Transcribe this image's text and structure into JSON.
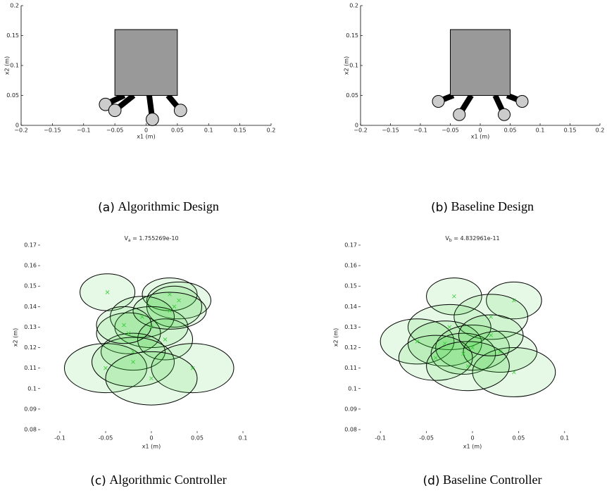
{
  "chart_data": [
    {
      "type": "design",
      "label": "(a)",
      "caption": "Algorithmic Design",
      "xlabel": "x1 (m)",
      "ylabel": "x2 (m)",
      "xlim": [
        -0.2,
        0.2
      ],
      "ylim": [
        0,
        0.2
      ],
      "xticks": [
        {
          "value": -0.2,
          "label": "−0.2"
        },
        {
          "value": -0.15,
          "label": "−0.15"
        },
        {
          "value": -0.1,
          "label": "−0.1"
        },
        {
          "value": -0.05,
          "label": "−0.05"
        },
        0,
        0.05,
        0.1,
        0.15,
        0.2
      ],
      "yticks": [
        0,
        0.05,
        0.1,
        0.15,
        0.2
      ],
      "box_x": [
        -0.05,
        0.05
      ],
      "box_y": [
        0.05,
        0.16
      ],
      "box_color": "#999999",
      "base_x": [
        -0.035,
        -0.02,
        0.005,
        0.035
      ],
      "tip_x": [
        -0.065,
        -0.05,
        0.01,
        0.055
      ],
      "tip_y": [
        0.035,
        0.025,
        0.01,
        0.025
      ],
      "tip_radius": 0.01
    },
    {
      "type": "design",
      "label": "(b)",
      "caption": "Baseline Design",
      "xlabel": "x1 (m)",
      "ylabel": "x2 (m)",
      "xlim": [
        -0.2,
        0.2
      ],
      "ylim": [
        0,
        0.2
      ],
      "xticks": [
        {
          "value": -0.2,
          "label": "−0.2"
        },
        {
          "value": -0.15,
          "label": "−0.15"
        },
        {
          "value": -0.1,
          "label": "−0.1"
        },
        {
          "value": -0.05,
          "label": "−0.05"
        },
        0,
        0.05,
        0.1,
        0.15,
        0.2
      ],
      "yticks": [
        0,
        0.05,
        0.1,
        0.15,
        0.2
      ],
      "box_x": [
        -0.05,
        0.05
      ],
      "box_y": [
        0.05,
        0.16
      ],
      "box_color": "#999999",
      "base_x": [
        -0.045,
        -0.015,
        0.025,
        0.045
      ],
      "tip_x": [
        -0.07,
        -0.035,
        0.04,
        0.07
      ],
      "tip_y": [
        0.04,
        0.018,
        0.018,
        0.04
      ],
      "tip_radius": 0.01
    },
    {
      "type": "ellipses",
      "label": "(c)",
      "caption": "Algorithmic Controller",
      "title": [
        "V",
        "a",
        " = 1.755269e-10"
      ],
      "xlabel": "x1 (m)",
      "ylabel": "x2 (m)",
      "xlim": [
        -0.12,
        0.12
      ],
      "ylim": [
        0.08,
        0.17
      ],
      "xticks": [
        {
          "value": -0.1,
          "label": "-0.1"
        },
        {
          "value": -0.05,
          "label": "-0.05"
        },
        0,
        0.05,
        0.1
      ],
      "yticks": [
        0.08,
        0.09,
        0.1,
        0.11,
        0.12,
        0.13,
        0.14,
        0.15,
        0.16,
        0.17
      ],
      "color": "#33cc33",
      "x": [
        -0.048,
        0.02,
        0.03,
        0.025,
        -0.01,
        0.0,
        -0.025,
        0.015,
        -0.02,
        -0.05,
        -0.02,
        0.045,
        0.0,
        0.02,
        -0.03
      ],
      "y": [
        0.147,
        0.146,
        0.143,
        0.14,
        0.135,
        0.13,
        0.127,
        0.124,
        0.118,
        0.11,
        0.113,
        0.11,
        0.105,
        0.138,
        0.131
      ],
      "rx": [
        0.03,
        0.03,
        0.035,
        0.03,
        0.035,
        0.04,
        0.035,
        0.03,
        0.035,
        0.045,
        0.045,
        0.045,
        0.05,
        0.04,
        0.03
      ],
      "ry": [
        0.009,
        0.008,
        0.009,
        0.01,
        0.01,
        0.01,
        0.01,
        0.01,
        0.009,
        0.012,
        0.012,
        0.012,
        0.013,
        0.009,
        0.009
      ]
    },
    {
      "type": "ellipses",
      "label": "(d)",
      "caption": "Baseline Controller",
      "title": [
        "V",
        "b",
        " = 4.832961e-11"
      ],
      "xlabel": "x1 (m)",
      "ylabel": "x2 (m)",
      "xlim": [
        -0.12,
        0.12
      ],
      "ylim": [
        0.08,
        0.17
      ],
      "xticks": [
        {
          "value": -0.1,
          "label": "-0.1"
        },
        {
          "value": -0.05,
          "label": "-0.05"
        },
        0,
        0.05,
        0.1
      ],
      "yticks": [
        0.08,
        0.09,
        0.1,
        0.11,
        0.12,
        0.13,
        0.14,
        0.15,
        0.16,
        0.17
      ],
      "color": "#33cc33",
      "x": [
        -0.02,
        0.045,
        0.02,
        -0.025,
        -0.06,
        -0.03,
        0.0,
        -0.01,
        0.03,
        -0.04,
        0.045,
        -0.005,
        0.02
      ],
      "y": [
        0.145,
        0.143,
        0.135,
        0.13,
        0.123,
        0.122,
        0.12,
        0.117,
        0.118,
        0.115,
        0.108,
        0.111,
        0.126
      ],
      "rx": [
        0.03,
        0.03,
        0.04,
        0.045,
        0.04,
        0.04,
        0.04,
        0.035,
        0.04,
        0.04,
        0.045,
        0.045,
        0.035
      ],
      "ry": [
        0.009,
        0.009,
        0.011,
        0.011,
        0.011,
        0.011,
        0.011,
        0.01,
        0.01,
        0.011,
        0.012,
        0.012,
        0.01
      ]
    }
  ]
}
